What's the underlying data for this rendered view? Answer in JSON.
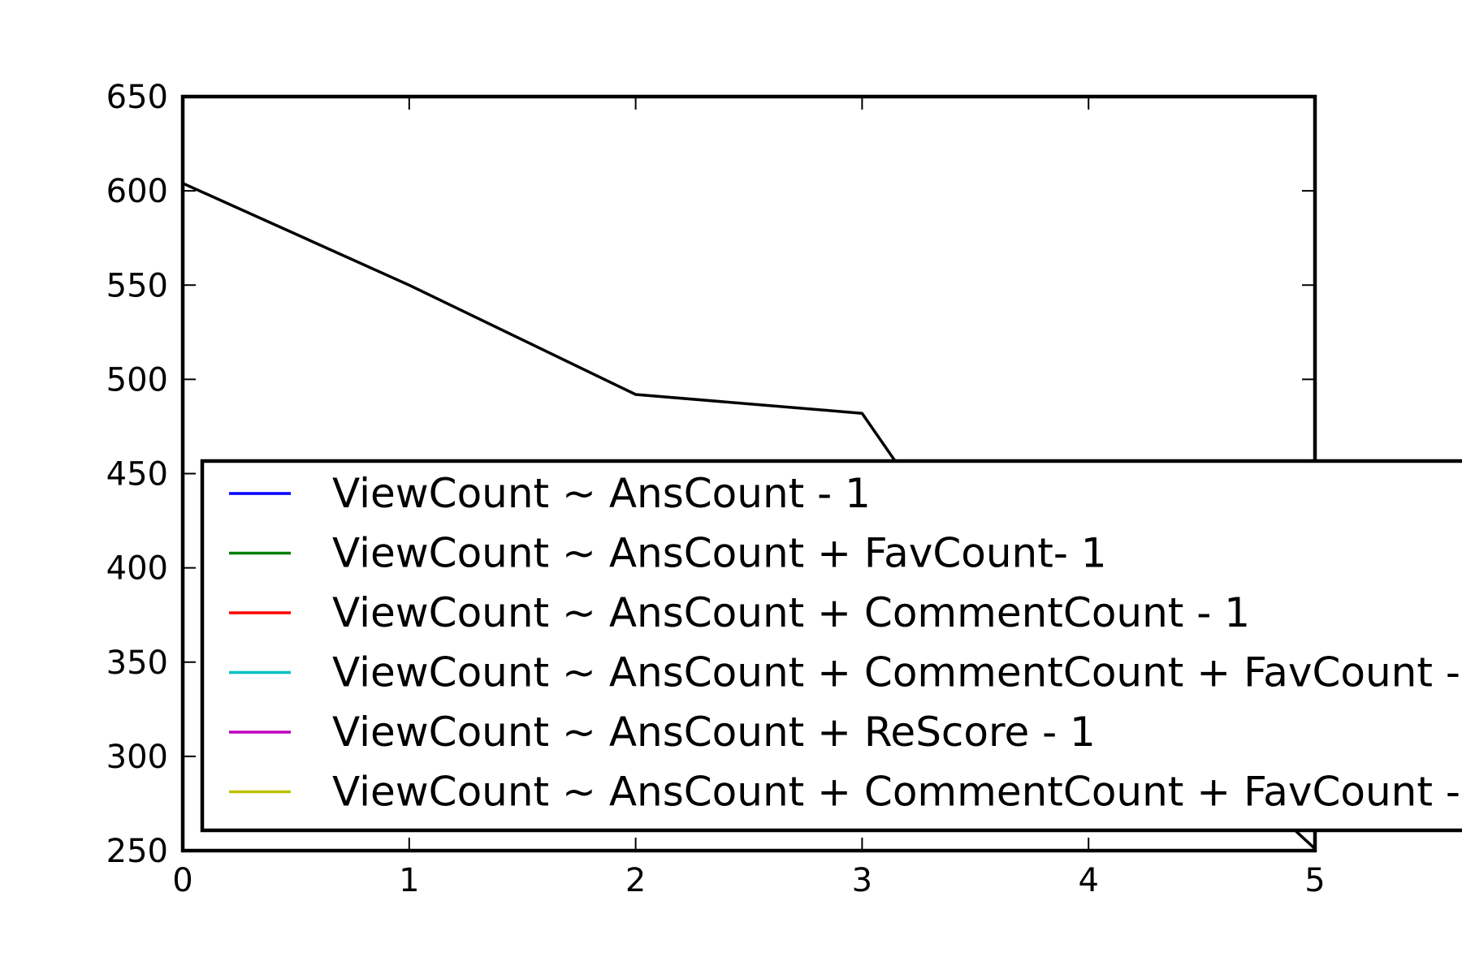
{
  "chart_data": {
    "type": "line",
    "title": "",
    "xlabel": "",
    "ylabel": "",
    "xlim": [
      0,
      5
    ],
    "ylim": [
      250,
      650
    ],
    "x_ticks": [
      "0",
      "1",
      "2",
      "3",
      "4",
      "5"
    ],
    "y_ticks": [
      "650",
      "600",
      "550",
      "500",
      "450",
      "400",
      "350",
      "300",
      "250"
    ],
    "grid": false,
    "legend_position": "lower right",
    "series": [
      {
        "x": [
          0,
          1,
          2,
          3,
          3.15,
          5
        ],
        "y": [
          604,
          550,
          492,
          482,
          456,
          251
        ],
        "color": "#000000"
      }
    ],
    "legend": [
      {
        "label": "ViewCount ~ AnsCount - 1",
        "color": "#0000ff"
      },
      {
        "label": "ViewCount ~ AnsCount + FavCount- 1",
        "color": "#008000"
      },
      {
        "label": "ViewCount ~ AnsCount + CommentCount - 1",
        "color": "#ff0000"
      },
      {
        "label": "ViewCount ~ AnsCount + CommentCount + FavCount -",
        "color": "#00bfbf"
      },
      {
        "label": "ViewCount ~ AnsCount + ReScore - 1",
        "color": "#bf00bf"
      },
      {
        "label": "ViewCount ~ AnsCount + CommentCount + FavCount -",
        "color": "#bfbf00"
      }
    ]
  }
}
